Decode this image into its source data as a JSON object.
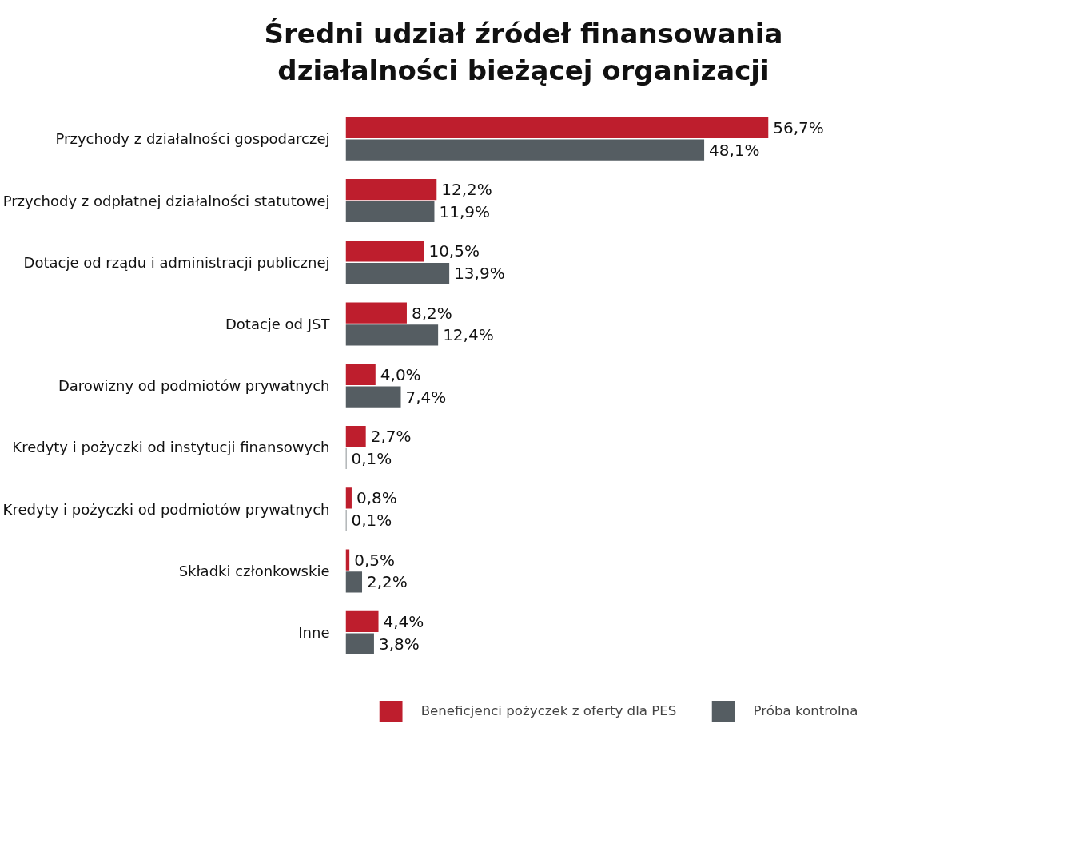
{
  "chart_data": {
    "type": "bar",
    "orientation": "horizontal",
    "title": "Średni udział źródeł finansowania działalności bieżącej organizacji",
    "categories": [
      "Przychody z działalności gospodarczej",
      "Przychody z odpłatnej działalności statutowej",
      "Dotacje od rządu i administracji publicznej",
      "Dotacje od JST",
      "Darowizny od podmiotów prywatnych",
      "Kredyty i pożyczki od instytucji finansowych",
      "Kredyty i pożyczki od podmiotów prywatnych",
      "Składki członkowskie",
      "Inne"
    ],
    "series": [
      {
        "name": "Beneficjenci pożyczek z oferty dla PES",
        "color": "#be1e2d",
        "values": [
          56.7,
          12.2,
          10.5,
          8.2,
          4.0,
          2.7,
          0.8,
          0.5,
          4.4
        ],
        "value_labels": [
          "56,7%",
          "12,2%",
          "10,5%",
          "8,2%",
          "4,0%",
          "2,7%",
          "0,8%",
          "0,5%",
          "4,4%"
        ]
      },
      {
        "name": "Próba kontrolna",
        "color": "#555d62",
        "values": [
          48.1,
          11.9,
          13.9,
          12.4,
          7.4,
          0.1,
          0.1,
          2.2,
          3.8
        ],
        "value_labels": [
          "48,1%",
          "11,9%",
          "13,9%",
          "12,4%",
          "7,4%",
          "0,1%",
          "0,1%",
          "2,2%",
          "3,8%"
        ]
      }
    ],
    "legend": "bottom",
    "grid": false
  }
}
